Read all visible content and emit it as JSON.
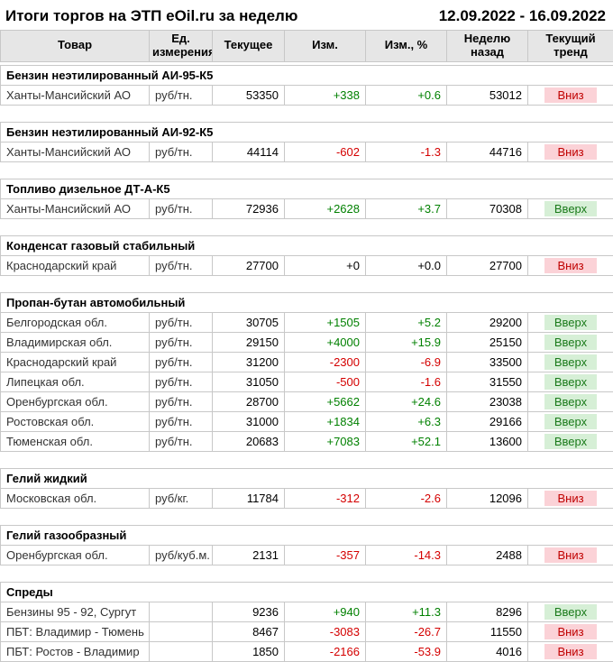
{
  "page": {
    "title": "Итоги торгов на ЭТП eOil.ru за неделю",
    "date_range": "12.09.2022 - 16.09.2022"
  },
  "chart_data": {
    "type": "table",
    "title": "Итоги торгов на ЭТП eOil.ru за неделю",
    "period": "12.09.2022 - 16.09.2022",
    "columns": [
      "Товар",
      "Ед. измерения",
      "Текущее",
      "Изм.",
      "Изм., %",
      "Неделю назад",
      "Текущий тренд"
    ],
    "sections": [
      {
        "title": "Бензин неэтилированный АИ-95-К5",
        "rows": [
          {
            "product": "Ханты-Мансийский АО",
            "unit": "руб/тн.",
            "current": "53350",
            "change": "+338",
            "change_pct": "+0.6",
            "week_ago": "53012",
            "trend": "Вниз"
          }
        ]
      },
      {
        "title": "Бензин неэтилированный АИ-92-К5",
        "rows": [
          {
            "product": "Ханты-Мансийский АО",
            "unit": "руб/тн.",
            "current": "44114",
            "change": "-602",
            "change_pct": "-1.3",
            "week_ago": "44716",
            "trend": "Вниз"
          }
        ]
      },
      {
        "title": "Топливо дизельное ДТ-А-К5",
        "rows": [
          {
            "product": "Ханты-Мансийский АО",
            "unit": "руб/тн.",
            "current": "72936",
            "change": "+2628",
            "change_pct": "+3.7",
            "week_ago": "70308",
            "trend": "Вверх"
          }
        ]
      },
      {
        "title": "Конденсат газовый стабильный",
        "rows": [
          {
            "product": "Краснодарский край",
            "unit": "руб/тн.",
            "current": "27700",
            "change": "+0",
            "change_pct": "+0.0",
            "week_ago": "27700",
            "trend": "Вниз"
          }
        ]
      },
      {
        "title": "Пропан-бутан автомобильный",
        "rows": [
          {
            "product": "Белгородская обл.",
            "unit": "руб/тн.",
            "current": "30705",
            "change": "+1505",
            "change_pct": "+5.2",
            "week_ago": "29200",
            "trend": "Вверх"
          },
          {
            "product": "Владимирская обл.",
            "unit": "руб/тн.",
            "current": "29150",
            "change": "+4000",
            "change_pct": "+15.9",
            "week_ago": "25150",
            "trend": "Вверх"
          },
          {
            "product": "Краснодарский край",
            "unit": "руб/тн.",
            "current": "31200",
            "change": "-2300",
            "change_pct": "-6.9",
            "week_ago": "33500",
            "trend": "Вверх"
          },
          {
            "product": "Липецкая обл.",
            "unit": "руб/тн.",
            "current": "31050",
            "change": "-500",
            "change_pct": "-1.6",
            "week_ago": "31550",
            "trend": "Вверх"
          },
          {
            "product": "Оренбургская обл.",
            "unit": "руб/тн.",
            "current": "28700",
            "change": "+5662",
            "change_pct": "+24.6",
            "week_ago": "23038",
            "trend": "Вверх"
          },
          {
            "product": "Ростовская обл.",
            "unit": "руб/тн.",
            "current": "31000",
            "change": "+1834",
            "change_pct": "+6.3",
            "week_ago": "29166",
            "trend": "Вверх"
          },
          {
            "product": "Тюменская обл.",
            "unit": "руб/тн.",
            "current": "20683",
            "change": "+7083",
            "change_pct": "+52.1",
            "week_ago": "13600",
            "trend": "Вверх"
          }
        ]
      },
      {
        "title": "Гелий жидкий",
        "rows": [
          {
            "product": "Московская обл.",
            "unit": "руб/кг.",
            "current": "11784",
            "change": "-312",
            "change_pct": "-2.6",
            "week_ago": "12096",
            "trend": "Вниз"
          }
        ]
      },
      {
        "title": "Гелий газообразный",
        "rows": [
          {
            "product": "Оренбургская обл.",
            "unit": "руб/куб.м.",
            "current": "2131",
            "change": "-357",
            "change_pct": "-14.3",
            "week_ago": "2488",
            "trend": "Вниз"
          }
        ]
      },
      {
        "title": "Спреды",
        "rows": [
          {
            "product": "Бензины 95 - 92, Сургут",
            "unit": "",
            "current": "9236",
            "change": "+940",
            "change_pct": "+11.3",
            "week_ago": "8296",
            "trend": "Вверх"
          },
          {
            "product": "ПБТ: Владимир - Тюмень",
            "unit": "",
            "current": "8467",
            "change": "-3083",
            "change_pct": "-26.7",
            "week_ago": "11550",
            "trend": "Вниз"
          },
          {
            "product": "ПБТ: Ростов - Владимир",
            "unit": "",
            "current": "1850",
            "change": "-2166",
            "change_pct": "-53.9",
            "week_ago": "4016",
            "trend": "Вниз"
          }
        ]
      }
    ],
    "trend_styles": {
      "Вверх": "up",
      "Вниз": "down"
    },
    "colors": {
      "positive": "#008000",
      "negative": "#d40000",
      "neutral": "#000000",
      "trend_up_bg": "#d6efd6",
      "trend_up_text": "#1a7a1a",
      "trend_down_bg": "#fbd2d7",
      "trend_down_text": "#c00000",
      "header_bg": "#e6e6e6"
    }
  }
}
